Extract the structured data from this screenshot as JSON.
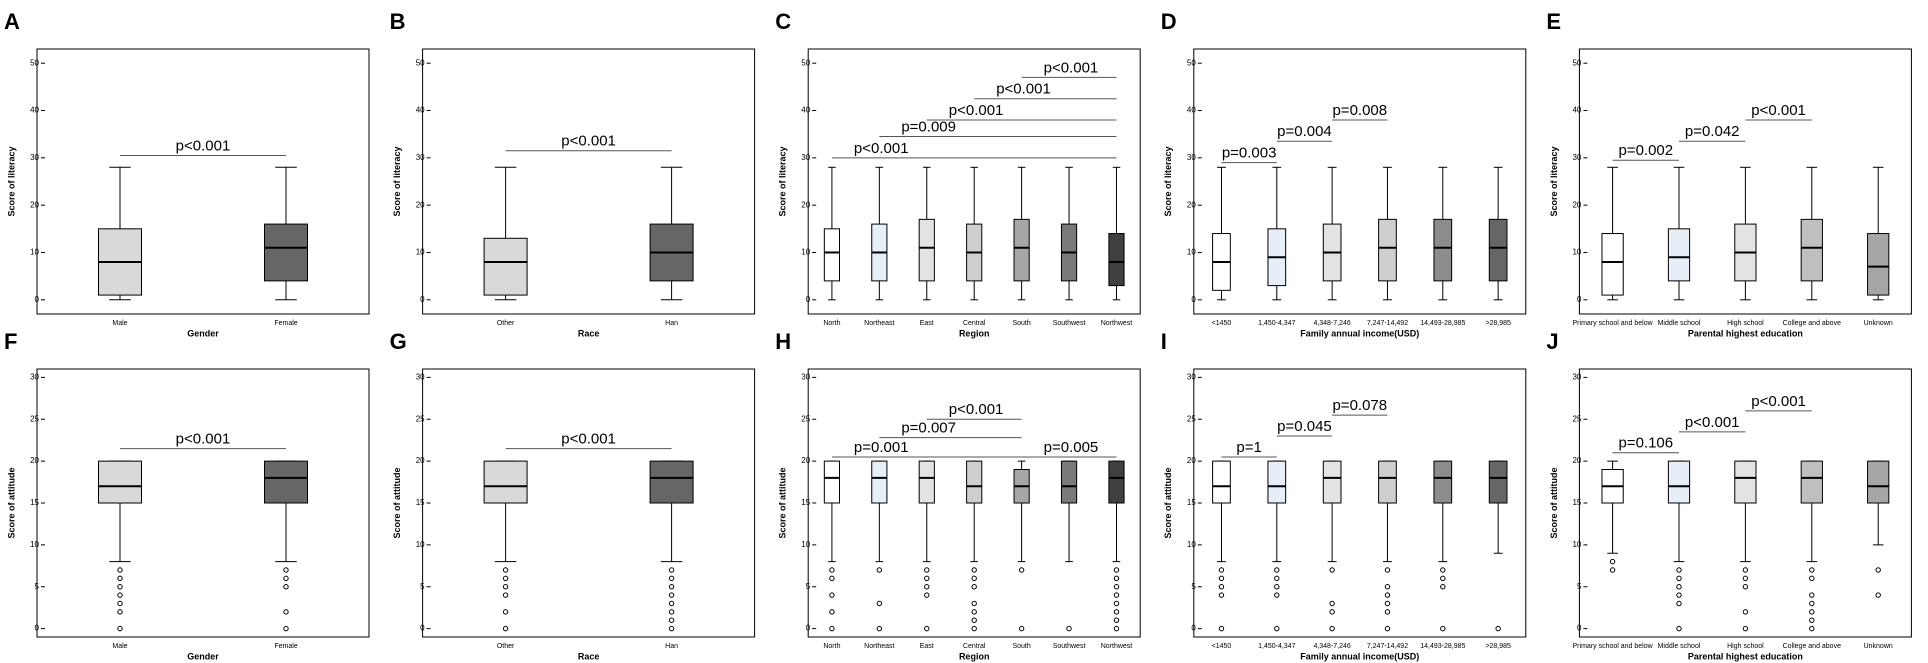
{
  "chart_data": [
    {
      "type": "box",
      "label": "A",
      "xlabel": "Gender",
      "ylabel": "Score of literacy",
      "categories": [
        "Male",
        "Female"
      ],
      "colors": [
        "#d9d9d9",
        "#666666"
      ],
      "boxes": [
        {
          "min": 0,
          "q1": 1,
          "median": 8,
          "q3": 15,
          "max": 28,
          "outliers": []
        },
        {
          "min": 0,
          "q1": 4,
          "median": 11,
          "q3": 16,
          "max": 28,
          "outliers": []
        }
      ],
      "ylim": [
        -3,
        53
      ],
      "yticks": [
        0,
        10,
        20,
        30,
        40,
        50
      ],
      "annotations": [
        {
          "between": [
            "Male",
            "Female"
          ],
          "y": 30.5,
          "label": "p<0.001"
        }
      ]
    },
    {
      "type": "box",
      "label": "B",
      "xlabel": "Race",
      "ylabel": "Score of literacy",
      "categories": [
        "Other",
        "Han"
      ],
      "colors": [
        "#d9d9d9",
        "#666666"
      ],
      "boxes": [
        {
          "min": 0,
          "q1": 1,
          "median": 8,
          "q3": 13,
          "max": 28,
          "outliers": []
        },
        {
          "min": 0,
          "q1": 4,
          "median": 10,
          "q3": 16,
          "max": 28,
          "outliers": []
        }
      ],
      "ylim": [
        -3,
        53
      ],
      "yticks": [
        0,
        10,
        20,
        30,
        40,
        50
      ],
      "annotations": [
        {
          "between": [
            "Other",
            "Han"
          ],
          "y": 31.5,
          "label": "p<0.001"
        }
      ]
    },
    {
      "type": "box",
      "label": "C",
      "xlabel": "Region",
      "ylabel": "Score of literacy",
      "categories": [
        "North",
        "Northeast",
        "East",
        "Central",
        "South",
        "Southwest",
        "Northwest"
      ],
      "colors": [
        "#ffffff",
        "#e6eef8",
        "#e3e3e3",
        "#cfcfcf",
        "#a6a6a6",
        "#7a7a7a",
        "#404040"
      ],
      "boxes": [
        {
          "min": 0,
          "q1": 4,
          "median": 10,
          "q3": 15,
          "max": 28,
          "outliers": []
        },
        {
          "min": 0,
          "q1": 4,
          "median": 10,
          "q3": 16,
          "max": 28,
          "outliers": []
        },
        {
          "min": 0,
          "q1": 4,
          "median": 11,
          "q3": 17,
          "max": 28,
          "outliers": []
        },
        {
          "min": 0,
          "q1": 4,
          "median": 10,
          "q3": 16,
          "max": 28,
          "outliers": []
        },
        {
          "min": 0,
          "q1": 4,
          "median": 11,
          "q3": 17,
          "max": 28,
          "outliers": []
        },
        {
          "min": 0,
          "q1": 4,
          "median": 10,
          "q3": 16,
          "max": 28,
          "outliers": []
        },
        {
          "min": 0,
          "q1": 3,
          "median": 8,
          "q3": 14,
          "max": 28,
          "outliers": []
        }
      ],
      "ylim": [
        -3,
        53
      ],
      "yticks": [
        0,
        10,
        20,
        30,
        40,
        50
      ],
      "annotations": [
        {
          "between": [
            "North",
            "Northwest"
          ],
          "y": 30,
          "label": "p<0.001"
        },
        {
          "between": [
            "Northeast",
            "Northwest"
          ],
          "y": 34.5,
          "label": "p=0.009"
        },
        {
          "between": [
            "East",
            "Northwest"
          ],
          "y": 38,
          "label": "p<0.001"
        },
        {
          "between": [
            "Central",
            "Northwest"
          ],
          "y": 42.5,
          "label": "p<0.001"
        },
        {
          "between": [
            "South",
            "Northwest"
          ],
          "y": 47,
          "label": "p<0.001"
        }
      ]
    },
    {
      "type": "box",
      "label": "D",
      "xlabel": "Family annual income(USD)",
      "ylabel": "Score of literacy",
      "categories": [
        "<1450",
        "1,450-4,347",
        "4,348-7,246",
        "7,247-14,492",
        "14,493-28,985",
        ">28,985"
      ],
      "colors": [
        "#ffffff",
        "#e6eef8",
        "#e3e3e3",
        "#cfcfcf",
        "#8c8c8c",
        "#666666"
      ],
      "boxes": [
        {
          "min": 0,
          "q1": 2,
          "median": 8,
          "q3": 14,
          "max": 28,
          "outliers": []
        },
        {
          "min": 0,
          "q1": 3,
          "median": 9,
          "q3": 15,
          "max": 28,
          "outliers": []
        },
        {
          "min": 0,
          "q1": 4,
          "median": 10,
          "q3": 16,
          "max": 28,
          "outliers": []
        },
        {
          "min": 0,
          "q1": 4,
          "median": 11,
          "q3": 17,
          "max": 28,
          "outliers": []
        },
        {
          "min": 0,
          "q1": 4,
          "median": 11,
          "q3": 17,
          "max": 28,
          "outliers": []
        },
        {
          "min": 0,
          "q1": 4,
          "median": 11,
          "q3": 17,
          "max": 28,
          "outliers": []
        }
      ],
      "ylim": [
        -3,
        53
      ],
      "yticks": [
        0,
        10,
        20,
        30,
        40,
        50
      ],
      "annotations": [
        {
          "between": [
            "<1450",
            "1,450-4,347"
          ],
          "y": 29,
          "label": "p=0.003"
        },
        {
          "between": [
            "1,450-4,347",
            "4,348-7,246"
          ],
          "y": 33.5,
          "label": "p=0.004"
        },
        {
          "between": [
            "4,348-7,246",
            "7,247-14,492"
          ],
          "y": 38,
          "label": "p=0.008"
        }
      ]
    },
    {
      "type": "box",
      "label": "E",
      "xlabel": "Parental highest education",
      "ylabel": "Score of literacy",
      "categories": [
        "Primary school and below",
        "Middle school",
        "High school",
        "College and above",
        "Unknown"
      ],
      "colors": [
        "#ffffff",
        "#e6eef8",
        "#e3e3e3",
        "#bfbfbf",
        "#a6a6a6"
      ],
      "boxes": [
        {
          "min": 0,
          "q1": 1,
          "median": 8,
          "q3": 14,
          "max": 28,
          "outliers": []
        },
        {
          "min": 0,
          "q1": 4,
          "median": 9,
          "q3": 15,
          "max": 28,
          "outliers": []
        },
        {
          "min": 0,
          "q1": 4,
          "median": 10,
          "q3": 16,
          "max": 28,
          "outliers": []
        },
        {
          "min": 0,
          "q1": 4,
          "median": 11,
          "q3": 17,
          "max": 28,
          "outliers": []
        },
        {
          "min": 0,
          "q1": 1,
          "median": 7,
          "q3": 14,
          "max": 28,
          "outliers": []
        }
      ],
      "ylim": [
        -3,
        53
      ],
      "yticks": [
        0,
        10,
        20,
        30,
        40,
        50
      ],
      "annotations": [
        {
          "between": [
            "Primary school and below",
            "Middle school"
          ],
          "y": 29.5,
          "label": "p=0.002"
        },
        {
          "between": [
            "Middle school",
            "High school"
          ],
          "y": 33.5,
          "label": "p=0.042"
        },
        {
          "between": [
            "High school",
            "College and above"
          ],
          "y": 38,
          "label": "p<0.001"
        }
      ]
    },
    {
      "type": "box",
      "label": "F",
      "xlabel": "Gender",
      "ylabel": "Score of attitude",
      "categories": [
        "Male",
        "Female"
      ],
      "colors": [
        "#d9d9d9",
        "#666666"
      ],
      "boxes": [
        {
          "min": 8,
          "q1": 15,
          "median": 17,
          "q3": 20,
          "max": 20,
          "outliers": [
            7,
            6,
            5,
            4,
            3,
            2,
            0
          ]
        },
        {
          "min": 8,
          "q1": 15,
          "median": 18,
          "q3": 20,
          "max": 20,
          "outliers": [
            7,
            6,
            5,
            2,
            0
          ]
        }
      ],
      "ylim": [
        -1,
        31
      ],
      "yticks": [
        0,
        5,
        10,
        15,
        20,
        25,
        30
      ],
      "annotations": [
        {
          "between": [
            "Male",
            "Female"
          ],
          "y": 21.5,
          "label": "p<0.001"
        }
      ]
    },
    {
      "type": "box",
      "label": "G",
      "xlabel": "Race",
      "ylabel": "Score of attitude",
      "categories": [
        "Other",
        "Han"
      ],
      "colors": [
        "#d9d9d9",
        "#666666"
      ],
      "boxes": [
        {
          "min": 8,
          "q1": 15,
          "median": 17,
          "q3": 20,
          "max": 20,
          "outliers": [
            7,
            6,
            5,
            4,
            2,
            0
          ]
        },
        {
          "min": 8,
          "q1": 15,
          "median": 18,
          "q3": 20,
          "max": 20,
          "outliers": [
            7,
            6,
            5,
            4,
            3,
            2,
            1,
            0
          ]
        }
      ],
      "ylim": [
        -1,
        31
      ],
      "yticks": [
        0,
        5,
        10,
        15,
        20,
        25,
        30
      ],
      "annotations": [
        {
          "between": [
            "Other",
            "Han"
          ],
          "y": 21.5,
          "label": "p<0.001"
        }
      ]
    },
    {
      "type": "box",
      "label": "H",
      "xlabel": "Region",
      "ylabel": "Score of attitude",
      "categories": [
        "North",
        "Northeast",
        "East",
        "Central",
        "South",
        "Southwest",
        "Northwest"
      ],
      "colors": [
        "#ffffff",
        "#e6eef8",
        "#e3e3e3",
        "#cfcfcf",
        "#a6a6a6",
        "#7a7a7a",
        "#404040"
      ],
      "boxes": [
        {
          "min": 8,
          "q1": 15,
          "median": 18,
          "q3": 20,
          "max": 20,
          "outliers": [
            7,
            6,
            4,
            2,
            0
          ]
        },
        {
          "min": 8,
          "q1": 15,
          "median": 18,
          "q3": 20,
          "max": 20,
          "outliers": [
            7,
            3,
            0
          ]
        },
        {
          "min": 8,
          "q1": 15,
          "median": 18,
          "q3": 20,
          "max": 20,
          "outliers": [
            7,
            6,
            5,
            4,
            0
          ]
        },
        {
          "min": 8,
          "q1": 15,
          "median": 17,
          "q3": 20,
          "max": 20,
          "outliers": [
            7,
            6,
            5,
            3,
            2,
            1,
            0
          ]
        },
        {
          "min": 8,
          "q1": 15,
          "median": 17,
          "q3": 19,
          "max": 20,
          "outliers": [
            7,
            0
          ]
        },
        {
          "min": 8,
          "q1": 15,
          "median": 17,
          "q3": 20,
          "max": 20,
          "outliers": [
            0
          ]
        },
        {
          "min": 8,
          "q1": 15,
          "median": 18,
          "q3": 20,
          "max": 20,
          "outliers": [
            7,
            6,
            5,
            4,
            3,
            2,
            1,
            0
          ]
        }
      ],
      "ylim": [
        -1,
        31
      ],
      "yticks": [
        0,
        5,
        10,
        15,
        20,
        25,
        30
      ],
      "annotations": [
        {
          "between": [
            "North",
            "South"
          ],
          "y": 20.5,
          "label": "p=0.001"
        },
        {
          "between": [
            "Northeast",
            "South"
          ],
          "y": 22.8,
          "label": "p=0.007"
        },
        {
          "between": [
            "East",
            "South"
          ],
          "y": 25,
          "label": "p<0.001"
        },
        {
          "between": [
            "South",
            "Northwest"
          ],
          "y": 20.5,
          "label": "p=0.005"
        }
      ]
    },
    {
      "type": "box",
      "label": "I",
      "xlabel": "Family annual income(USD)",
      "ylabel": "Score of attitude",
      "categories": [
        "<1450",
        "1,450-4,347",
        "4,348-7,246",
        "7,247-14,492",
        "14,493-28,985",
        ">28,985"
      ],
      "colors": [
        "#ffffff",
        "#e6eef8",
        "#e3e3e3",
        "#cfcfcf",
        "#8c8c8c",
        "#666666"
      ],
      "boxes": [
        {
          "min": 8,
          "q1": 15,
          "median": 17,
          "q3": 20,
          "max": 20,
          "outliers": [
            7,
            6,
            5,
            4,
            0
          ]
        },
        {
          "min": 8,
          "q1": 15,
          "median": 17,
          "q3": 20,
          "max": 20,
          "outliers": [
            7,
            6,
            5,
            4,
            0
          ]
        },
        {
          "min": 8,
          "q1": 15,
          "median": 18,
          "q3": 20,
          "max": 20,
          "outliers": [
            7,
            3,
            2,
            0
          ]
        },
        {
          "min": 8,
          "q1": 15,
          "median": 18,
          "q3": 20,
          "max": 20,
          "outliers": [
            7,
            5,
            4,
            3,
            2,
            0
          ]
        },
        {
          "min": 8,
          "q1": 15,
          "median": 18,
          "q3": 20,
          "max": 20,
          "outliers": [
            7,
            6,
            5,
            0
          ]
        },
        {
          "min": 9,
          "q1": 15,
          "median": 18,
          "q3": 20,
          "max": 20,
          "outliers": [
            0
          ]
        }
      ],
      "ylim": [
        -1,
        31
      ],
      "yticks": [
        0,
        5,
        10,
        15,
        20,
        25,
        30
      ],
      "annotations": [
        {
          "between": [
            "<1450",
            "1,450-4,347"
          ],
          "y": 20.5,
          "label": "p=1"
        },
        {
          "between": [
            "1,450-4,347",
            "4,348-7,246"
          ],
          "y": 23,
          "label": "p=0.045"
        },
        {
          "between": [
            "4,348-7,246",
            "7,247-14,492"
          ],
          "y": 25.5,
          "label": "p=0.078"
        }
      ]
    },
    {
      "type": "box",
      "label": "J",
      "xlabel": "Parental highest education",
      "ylabel": "Score of attitude",
      "categories": [
        "Primary school and below",
        "Middle school",
        "High school",
        "College and above",
        "Unknown"
      ],
      "colors": [
        "#ffffff",
        "#e6eef8",
        "#e3e3e3",
        "#bfbfbf",
        "#a6a6a6"
      ],
      "boxes": [
        {
          "min": 9,
          "q1": 15,
          "median": 17,
          "q3": 19,
          "max": 20,
          "outliers": [
            8,
            7
          ]
        },
        {
          "min": 8,
          "q1": 15,
          "median": 17,
          "q3": 20,
          "max": 20,
          "outliers": [
            7,
            6,
            5,
            4,
            3,
            0
          ]
        },
        {
          "min": 8,
          "q1": 15,
          "median": 18,
          "q3": 20,
          "max": 20,
          "outliers": [
            7,
            6,
            5,
            2,
            0
          ]
        },
        {
          "min": 8,
          "q1": 15,
          "median": 18,
          "q3": 20,
          "max": 20,
          "outliers": [
            7,
            6,
            4,
            3,
            2,
            1,
            0
          ]
        },
        {
          "min": 10,
          "q1": 15,
          "median": 17,
          "q3": 20,
          "max": 20,
          "outliers": [
            7,
            4
          ]
        }
      ],
      "ylim": [
        -1,
        31
      ],
      "yticks": [
        0,
        5,
        10,
        15,
        20,
        25,
        30
      ],
      "annotations": [
        {
          "between": [
            "Primary school and below",
            "Middle school"
          ],
          "y": 21,
          "label": "p=0.106"
        },
        {
          "between": [
            "Middle school",
            "High school"
          ],
          "y": 23.5,
          "label": "p<0.001"
        },
        {
          "between": [
            "High school",
            "College and above"
          ],
          "y": 26,
          "label": "p<0.001"
        }
      ]
    }
  ]
}
